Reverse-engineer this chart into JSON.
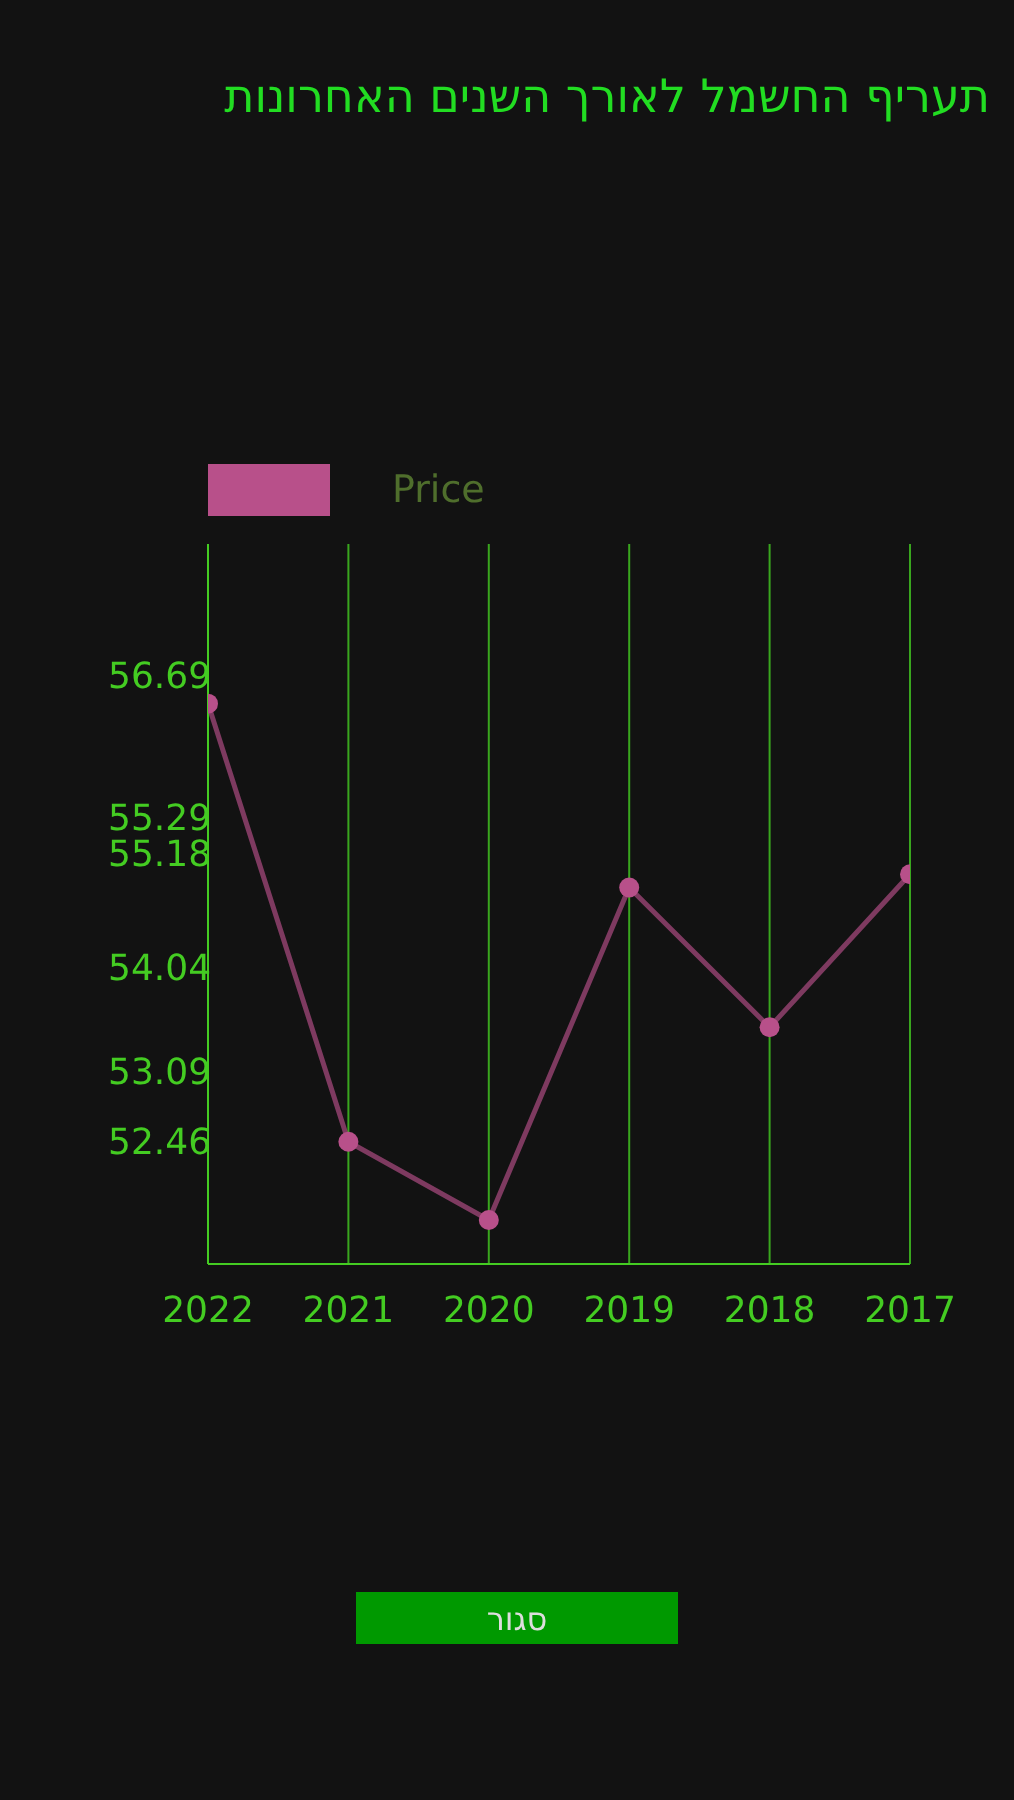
{
  "chart_data": {
    "type": "line",
    "title": "תעריף החשמל לאורך השנים האחרונות",
    "categories": [
      "2022",
      "2021",
      "2020",
      "2019",
      "2018",
      "2017"
    ],
    "series": [
      {
        "name": "Price",
        "color": "#b8508a",
        "values": [
          56.44,
          52.46,
          51.75,
          54.77,
          53.5,
          54.89
        ]
      }
    ],
    "ylim": [
      51.35,
      57.89
    ],
    "yticks": [
      52.46,
      53.09,
      54.04,
      55.18,
      55.29,
      56.69
    ],
    "grid": "x",
    "legend": "top left",
    "marker": "circle",
    "line_style": "solid",
    "annotations": [
      "סגור"
    ]
  }
}
